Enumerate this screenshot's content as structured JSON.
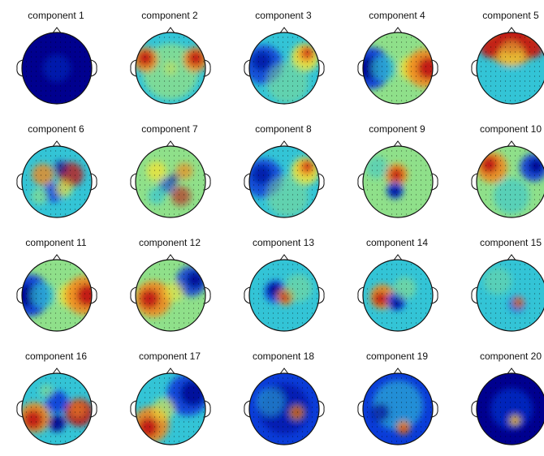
{
  "figure": {
    "components": [
      {
        "title": "component 1",
        "map": "uniform-deep-blue"
      },
      {
        "title": "component 2",
        "map": "bilateral-red-temporal"
      },
      {
        "title": "component 3",
        "map": "blue-left-red-right-frontal"
      },
      {
        "title": "component 4",
        "map": "blue-left-red-right-gradient"
      },
      {
        "title": "component 5",
        "map": "red-frontal-band"
      },
      {
        "title": "component 6",
        "map": "mixed-noisy"
      },
      {
        "title": "component 7",
        "map": "mixed-noisy-green"
      },
      {
        "title": "component 8",
        "map": "blue-left-red-right-frontal"
      },
      {
        "title": "component 9",
        "map": "red-blue-central-dipole"
      },
      {
        "title": "component 10",
        "map": "red-left-blue-right-frontal"
      },
      {
        "title": "component 11",
        "map": "blue-left-red-right-gradient"
      },
      {
        "title": "component 12",
        "map": "red-left-blue-right-diagonal"
      },
      {
        "title": "component 13",
        "map": "blue-red-central-left"
      },
      {
        "title": "component 14",
        "map": "red-blue-central-dipole-strong"
      },
      {
        "title": "component 15",
        "map": "small-red-central-spot"
      },
      {
        "title": "component 16",
        "map": "red-blue-stripes"
      },
      {
        "title": "component 17",
        "map": "blue-top-right-red-bottom-left"
      },
      {
        "title": "component 18",
        "map": "blue-with-red-spot-right"
      },
      {
        "title": "component 19",
        "map": "blue-with-red-spot-bottom"
      },
      {
        "title": "component 20",
        "map": "deep-blue-small-spot"
      }
    ],
    "colors": {
      "deep_blue": "#00008f",
      "blue": "#0a3cd8",
      "cyan": "#33c4d6",
      "green": "#8fe08a",
      "yellow": "#f0e43a",
      "orange": "#f08a20",
      "red": "#c01818",
      "dark_red": "#7a0000",
      "outline": "#111111"
    }
  }
}
